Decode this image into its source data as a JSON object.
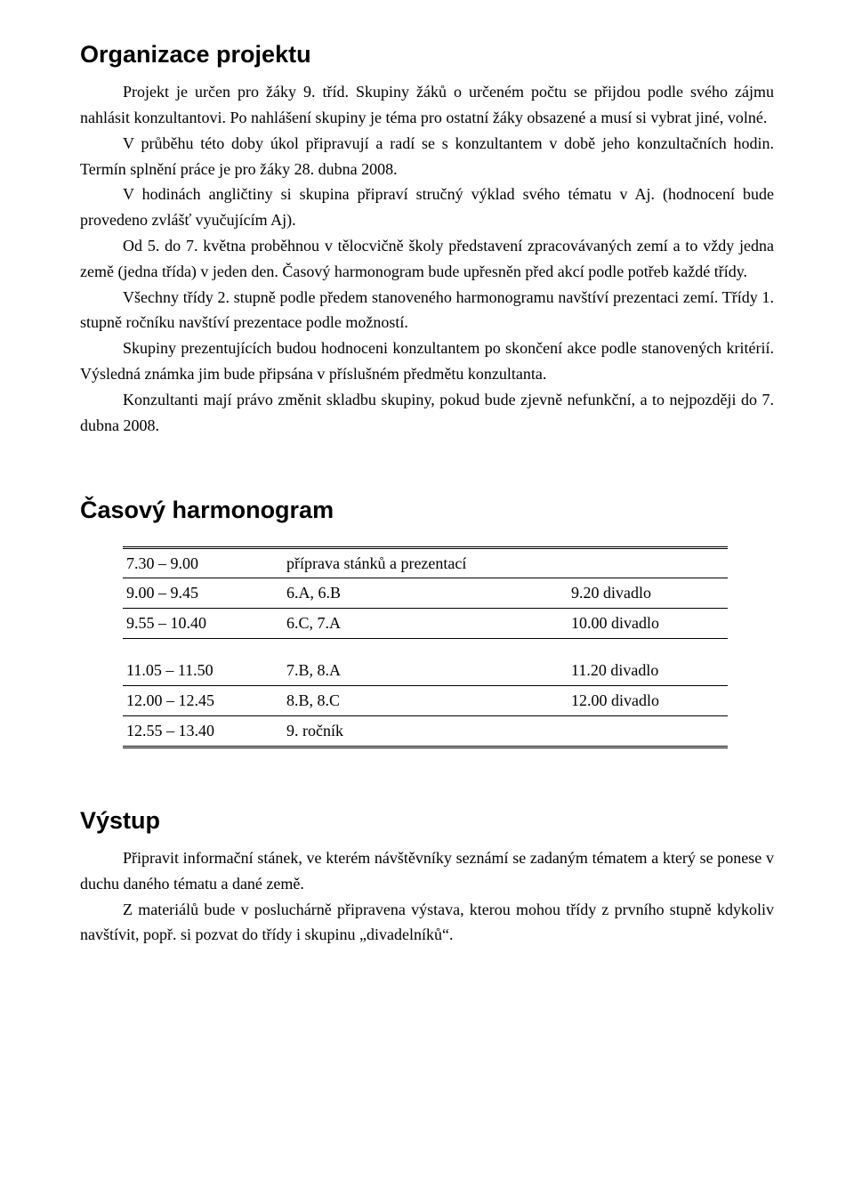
{
  "section1": {
    "title": "Organizace projektu",
    "paragraphs": [
      "Projekt je určen pro žáky 9. tříd. Skupiny žáků o určeném počtu se přijdou podle svého zájmu nahlásit konzultantovi. Po nahlášení skupiny je téma pro ostatní žáky obsazené a musí si vybrat jiné, volné.",
      "V průběhu této doby úkol připravují a radí se s konzultantem v době jeho konzultačních hodin. Termín splnění práce je pro žáky 28. dubna 2008.",
      "V hodinách angličtiny si skupina připraví stručný výklad svého tématu v Aj. (hodnocení bude provedeno zvlášť vyučujícím Aj).",
      "Od 5. do 7. května proběhnou v tělocvičně školy představení zpracovávaných zemí a to vždy jedna země (jedna třída) v jeden den. Časový harmonogram bude upřesněn před akcí podle potřeb každé třídy.",
      "Všechny třídy 2. stupně podle předem stanoveného harmonogramu navštíví prezentaci zemí. Třídy 1. stupně ročníku navštíví prezentace podle možností.",
      "Skupiny prezentujících budou hodnoceni konzultantem po skončení akce podle stanovených kritérií. Výsledná známka jim bude připsána v příslušném předmětu konzultanta.",
      "Konzultanti mají právo změnit skladbu skupiny, pokud bude zjevně nefunkční, a to nejpozději do 7. dubna 2008."
    ]
  },
  "section2": {
    "title": "Časový harmonogram",
    "rows1": [
      {
        "time": "7.30 – 9.00",
        "activity": "příprava stánků a prezentací",
        "note": ""
      },
      {
        "time": "9.00 – 9.45",
        "activity": "6.A, 6.B",
        "note": "9.20 divadlo"
      },
      {
        "time": "9.55 – 10.40",
        "activity": "6.C, 7.A",
        "note": "10.00 divadlo"
      }
    ],
    "rows2": [
      {
        "time": "11.05 – 11.50",
        "activity": "7.B, 8.A",
        "note": "11.20 divadlo"
      },
      {
        "time": "12.00 – 12.45",
        "activity": "8.B, 8.C",
        "note": "12.00 divadlo"
      },
      {
        "time": "12.55 – 13.40",
        "activity": "9. ročník",
        "note": ""
      }
    ]
  },
  "section3": {
    "title": "Výstup",
    "paragraphs": [
      "Připravit informační stánek, ve kterém návštěvníky seznámí se zadaným tématem a který se ponese v duchu daného tématu a dané země.",
      "Z materiálů bude v posluchárně připravena výstava, kterou mohou třídy z prvního stupně kdykoliv navštívit, popř. si pozvat do třídy i skupinu „divadelníků“."
    ]
  }
}
